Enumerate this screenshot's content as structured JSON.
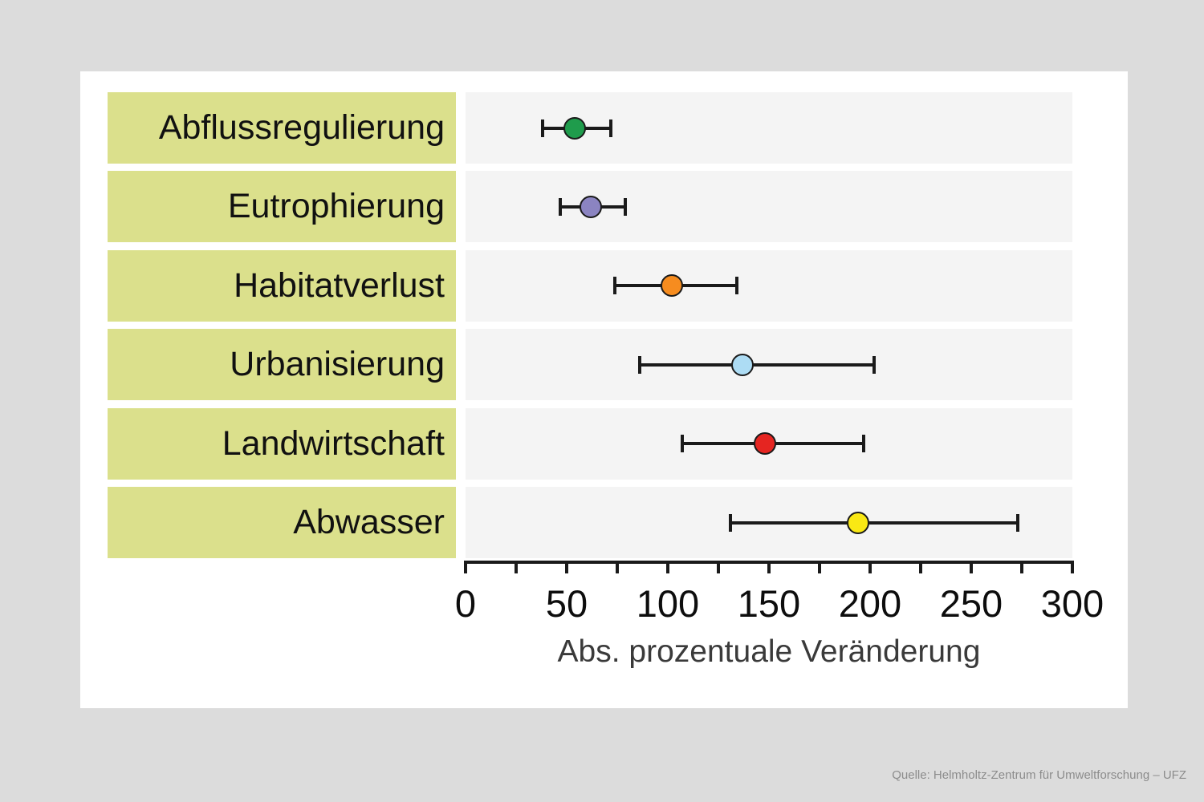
{
  "page": {
    "background": "#dcdcdc",
    "card_background": "#ffffff"
  },
  "chart_data": {
    "type": "scatter",
    "subtype": "horizontal-dot-plot-with-error-bars",
    "categories": [
      "Abflussregulierung",
      "Eutrophierung",
      "Habitatverlust",
      "Urbanisierung",
      "Landwirtschaft",
      "Abwasser"
    ],
    "values": [
      54,
      62,
      102,
      137,
      148,
      194
    ],
    "ci_low": [
      38,
      47,
      74,
      86,
      107,
      131
    ],
    "ci_high": [
      72,
      79,
      134,
      202,
      197,
      273
    ],
    "point_colors": [
      "#1f9c4c",
      "#8b84c1",
      "#f68c1f",
      "#addcf4",
      "#e52521",
      "#f9e814"
    ],
    "xlabel": "Abs. prozentuale Veränderung",
    "xlim": [
      0,
      300
    ],
    "x_major_ticks": [
      0,
      50,
      100,
      150,
      200,
      250,
      300
    ],
    "x_minor_tick_step": 25,
    "label_box_color": "#dbe08c",
    "row_background": "#f4f4f4",
    "grid": false,
    "legend": false
  },
  "source": "Quelle: Helmholtz-Zentrum für Umweltforschung – UFZ"
}
